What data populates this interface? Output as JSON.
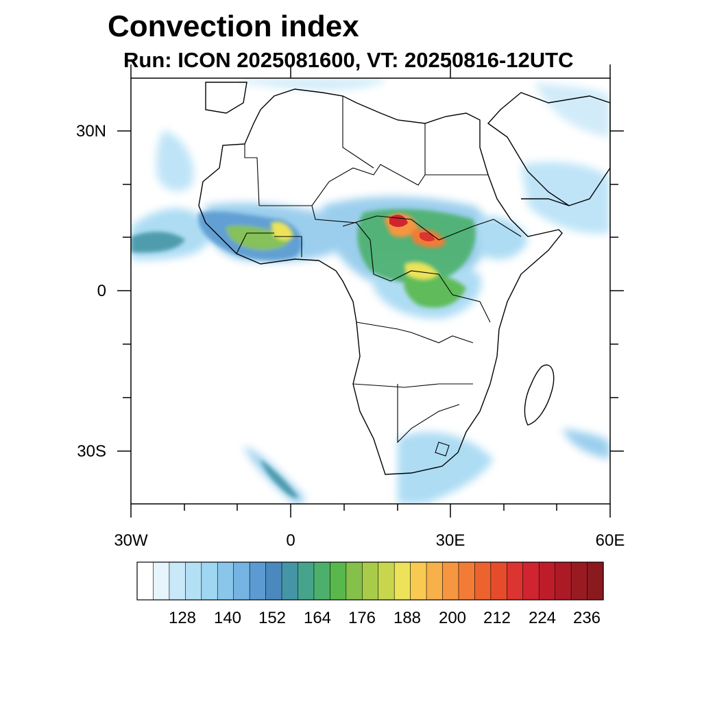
{
  "title": "Convection index",
  "subtitle": "Run: ICON 2025081600,  VT: 20250816-12UTC",
  "map": {
    "projection": "cylindrical equidistant",
    "lon_range_deg": [
      -30,
      60
    ],
    "lat_range_deg": [
      -40,
      40
    ],
    "lat_labels": [
      "30N",
      "0",
      "30S"
    ],
    "lon_labels": [
      "30W",
      "0",
      "30E",
      "60E"
    ],
    "coastline_color": "#000000"
  },
  "colorbar": {
    "labels": [
      "128",
      "140",
      "152",
      "164",
      "176",
      "188",
      "200",
      "212",
      "224",
      "236"
    ],
    "colors": [
      "#ffffff",
      "#e6f4fc",
      "#c9e8f8",
      "#b4e0f6",
      "#9fd6f2",
      "#8ac6ea",
      "#75b4e2",
      "#5c9bd2",
      "#4a88be",
      "#4496a6",
      "#46a48c",
      "#4cb06c",
      "#58b84c",
      "#84c04a",
      "#a8cc4a",
      "#c8d64e",
      "#ece35a",
      "#f8ca52",
      "#f7b04a",
      "#f69640",
      "#f27c36",
      "#ec632e",
      "#e64c2c",
      "#dc3430",
      "#d02430",
      "#bf1c2a",
      "#ac1a26",
      "#9a1a22",
      "#8a1a1e"
    ]
  }
}
